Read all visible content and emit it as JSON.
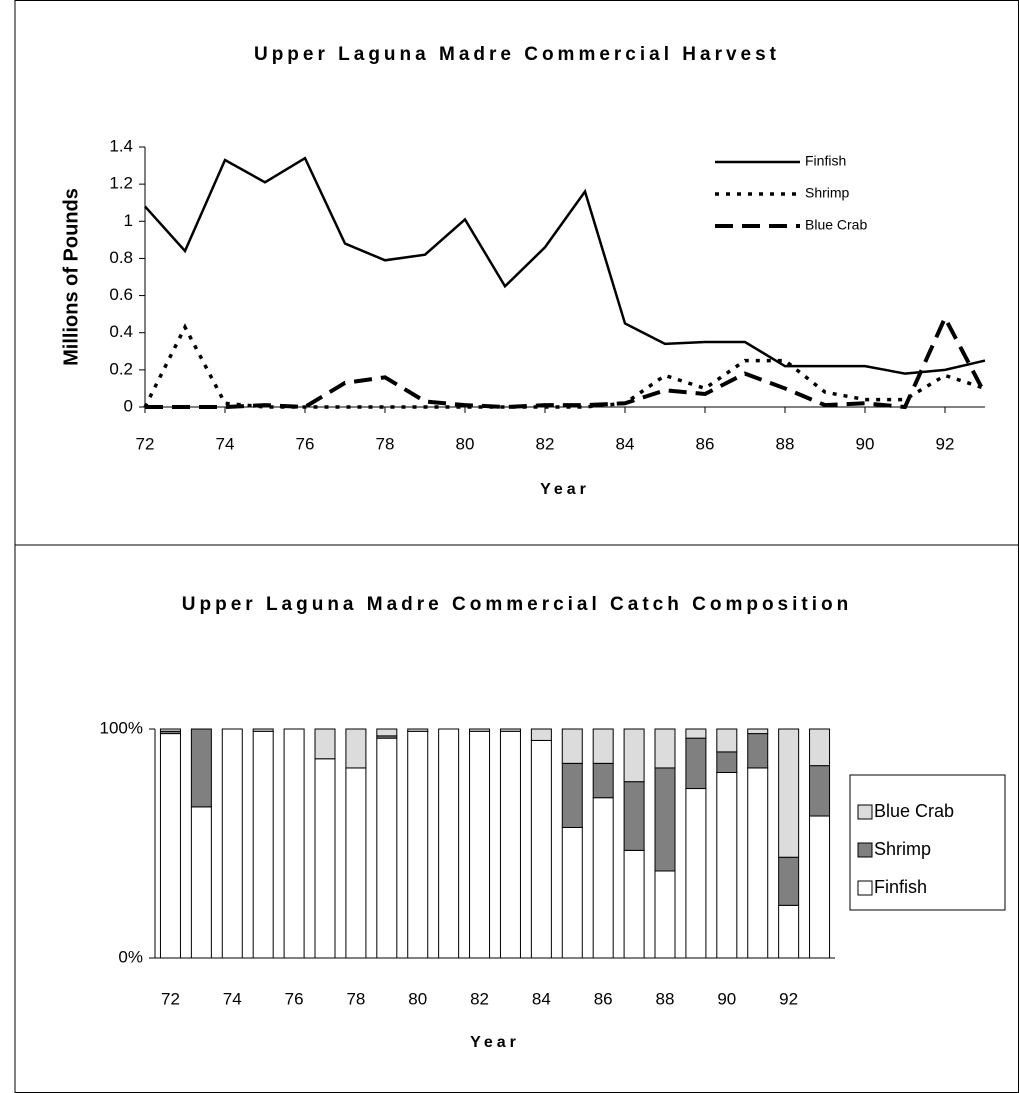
{
  "chart_data": [
    {
      "type": "line",
      "title": "Upper Laguna Madre Commercial Harvest",
      "x_label": "Year",
      "y_label": "Millions of Pounds",
      "x": [
        72,
        73,
        74,
        75,
        76,
        77,
        78,
        79,
        80,
        81,
        82,
        83,
        84,
        85,
        86,
        87,
        88,
        89,
        90,
        91,
        92,
        93
      ],
      "xlim": [
        72,
        93
      ],
      "xticks": [
        72,
        74,
        76,
        78,
        80,
        82,
        84,
        86,
        88,
        90,
        92
      ],
      "ylim": [
        0,
        1.4
      ],
      "yticks": [
        0,
        0.2,
        0.4,
        0.6,
        0.8,
        1,
        1.2,
        1.4
      ],
      "series": [
        {
          "name": "Finfish",
          "color": "#000000",
          "style": "solid",
          "values": [
            1.08,
            0.84,
            1.33,
            1.21,
            1.34,
            0.88,
            0.79,
            0.82,
            1.01,
            0.65,
            0.86,
            1.16,
            0.45,
            0.34,
            0.35,
            0.35,
            0.22,
            0.22,
            0.22,
            0.18,
            0.2,
            0.25
          ]
        },
        {
          "name": "Shrimp",
          "color": "#000000",
          "style": "dotted",
          "values": [
            0,
            0.43,
            0.02,
            0,
            0,
            0,
            0,
            0,
            0,
            0,
            0,
            0,
            0.02,
            0.17,
            0.1,
            0.25,
            0.25,
            0.08,
            0.04,
            0.04,
            0.17,
            0.1
          ]
        },
        {
          "name": "Blue Crab",
          "color": "#000000",
          "style": "dashed",
          "values": [
            0,
            0,
            0,
            0.01,
            0,
            0.13,
            0.16,
            0.03,
            0.01,
            0,
            0.01,
            0.01,
            0.02,
            0.09,
            0.07,
            0.18,
            0.1,
            0.01,
            0.02,
            0,
            0.48,
            0.07
          ]
        }
      ]
    },
    {
      "type": "stacked_bar",
      "title": "Upper Laguna Madre Commercial Catch Composition",
      "x_label": "Year",
      "categories": [
        "72",
        null,
        "74",
        null,
        "76",
        null,
        "78",
        null,
        "80",
        null,
        "82",
        null,
        "84",
        null,
        "86",
        null,
        "88",
        null,
        "90",
        null,
        "92",
        null
      ],
      "ylim": [
        0,
        100
      ],
      "yticks": [
        {
          "value": 0,
          "label": "0%"
        },
        {
          "value": 100,
          "label": "100%"
        }
      ],
      "series": [
        {
          "name": "Finfish",
          "color": "#ffffff",
          "values": [
            98,
            66,
            100,
            99,
            100,
            87,
            83,
            96,
            99,
            100,
            99,
            99,
            95,
            57,
            70,
            47,
            38,
            74,
            81,
            83,
            23,
            62
          ]
        },
        {
          "name": "Shrimp",
          "color": "#808080",
          "values": [
            1,
            34,
            0,
            0,
            0,
            0,
            0,
            1,
            0,
            0,
            0,
            0,
            0,
            28,
            15,
            30,
            45,
            22,
            9,
            15,
            21,
            22
          ]
        },
        {
          "name": "Blue Crab",
          "color": "#dcdcdc",
          "values": [
            1,
            0,
            0,
            1,
            0,
            13,
            17,
            3,
            1,
            0,
            1,
            1,
            5,
            15,
            15,
            23,
            17,
            4,
            10,
            2,
            56,
            16
          ]
        }
      ]
    }
  ]
}
